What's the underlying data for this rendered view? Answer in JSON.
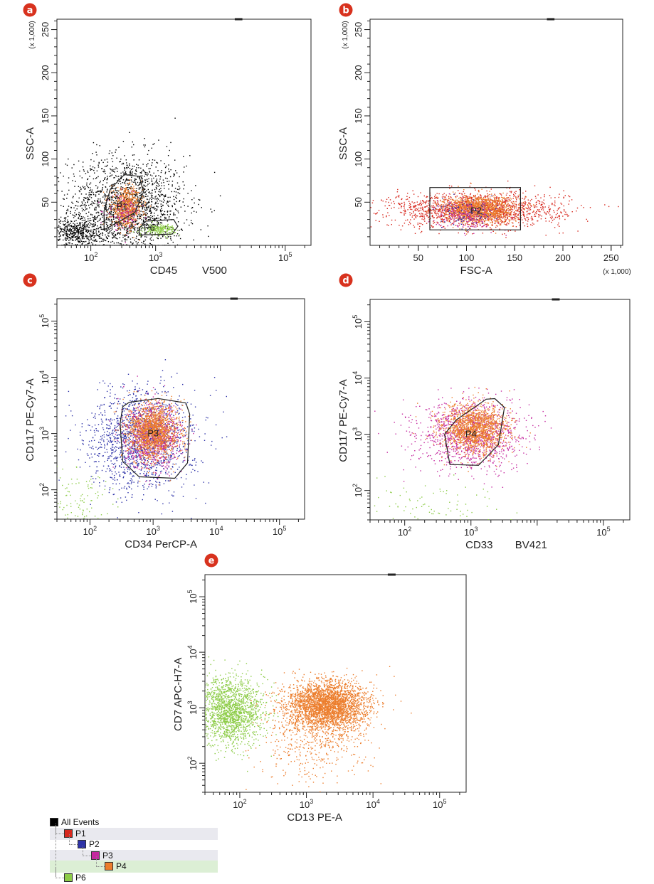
{
  "colors": {
    "P1": "#d7281e",
    "P2": "#2e33a8",
    "P3": "#c4289f",
    "P4": "#ec7d2c",
    "P6": "#8dcc48",
    "ungated": "#000000",
    "badge": "#d8321e"
  },
  "chart_data": [
    {
      "panel": "a",
      "type": "scatter",
      "xlabel": "CD45",
      "xlabel_suffix": "V500",
      "ylabel": "SSC-A",
      "y_multiplier": "(x 1,000)",
      "x_scale": "log",
      "y_scale": "linear",
      "xlim": [
        30,
        250000
      ],
      "ylim": [
        0,
        262
      ],
      "x_ticks": [
        {
          "value": 100,
          "base": "10",
          "exp": "2"
        },
        {
          "value": 1000,
          "base": "10",
          "exp": "3"
        },
        {
          "value": 100000,
          "base": "10",
          "exp": "5"
        }
      ],
      "y_ticks": [
        {
          "value": 50,
          "label": "50"
        },
        {
          "value": 100,
          "label": "100"
        },
        {
          "value": 150,
          "label": "150"
        },
        {
          "value": 200,
          "label": "200"
        },
        {
          "value": 250,
          "label": "250"
        }
      ],
      "populations": [
        {
          "gate": "ungated",
          "color_key": "ungated",
          "count": 1900,
          "x_log_center": 2.55,
          "x_log_sd": 0.45,
          "y_center": 45,
          "y_sd": 30
        },
        {
          "gate": "ungated",
          "color_key": "ungated",
          "count": 500,
          "x_log_center": 1.75,
          "x_log_sd": 0.25,
          "y_center": 15,
          "y_sd": 8
        },
        {
          "gate": "P4",
          "color_key": "P4",
          "count": 700,
          "x_log_center": 2.55,
          "x_log_sd": 0.12,
          "y_center": 44,
          "y_sd": 11
        },
        {
          "gate": "P3",
          "color_key": "P3",
          "count": 120,
          "x_log_center": 2.5,
          "x_log_sd": 0.13,
          "y_center": 38,
          "y_sd": 10
        },
        {
          "gate": "P6",
          "color_key": "P6",
          "count": 220,
          "x_log_center": 3.05,
          "x_log_sd": 0.12,
          "y_center": 19,
          "y_sd": 3
        }
      ],
      "gates": [
        {
          "name": "P1",
          "label_x": 300,
          "label_y": 45,
          "polygon": [
            [
              160,
              18
            ],
            [
              200,
              22
            ],
            [
              480,
              38
            ],
            [
              650,
              62
            ],
            [
              560,
              80
            ],
            [
              330,
              82
            ],
            [
              200,
              65
            ],
            [
              160,
              40
            ]
          ]
        },
        {
          "name": "P6",
          "label_x": 800,
          "label_y": 20,
          "polygon": [
            [
              560,
              12
            ],
            [
              1800,
              13
            ],
            [
              2200,
              22
            ],
            [
              1900,
              30
            ],
            [
              700,
              28
            ],
            [
              560,
              20
            ]
          ]
        }
      ]
    },
    {
      "panel": "b",
      "type": "scatter",
      "xlabel": "FSC-A",
      "ylabel": "SSC-A",
      "x_multiplier": "(x 1,000)",
      "y_multiplier": "(x 1,000)",
      "x_scale": "linear",
      "y_scale": "linear",
      "xlim": [
        0,
        262
      ],
      "ylim": [
        0,
        262
      ],
      "x_ticks": [
        {
          "value": 50,
          "label": "50"
        },
        {
          "value": 100,
          "label": "100"
        },
        {
          "value": 150,
          "label": "150"
        },
        {
          "value": 200,
          "label": "200"
        },
        {
          "value": 250,
          "label": "250"
        }
      ],
      "y_ticks": [
        {
          "value": 50,
          "label": "50"
        },
        {
          "value": 100,
          "label": "100"
        },
        {
          "value": 150,
          "label": "150"
        },
        {
          "value": 200,
          "label": "200"
        },
        {
          "value": 250,
          "label": "250"
        }
      ],
      "populations": [
        {
          "gate": "P1",
          "color_key": "P1",
          "count": 1600,
          "x_center": 110,
          "x_sd": 45,
          "y_center": 42,
          "y_sd": 10
        },
        {
          "gate": "P4",
          "color_key": "P4",
          "count": 1300,
          "x_center": 112,
          "x_sd": 18,
          "y_center": 42,
          "y_sd": 8
        },
        {
          "gate": "P3",
          "color_key": "P3",
          "count": 220,
          "x_center": 100,
          "x_sd": 15,
          "y_center": 35,
          "y_sd": 8
        },
        {
          "gate": "P2",
          "color_key": "P2",
          "count": 100,
          "x_center": 100,
          "x_sd": 16,
          "y_center": 36,
          "y_sd": 8
        }
      ],
      "gates": [
        {
          "name": "P2",
          "label_x": 110,
          "label_y": 40,
          "polygon": [
            [
              62,
              18
            ],
            [
              156,
              18
            ],
            [
              156,
              67
            ],
            [
              62,
              67
            ]
          ]
        }
      ]
    },
    {
      "panel": "c",
      "type": "scatter",
      "xlabel": "CD34 PerCP-A",
      "ylabel": "CD117 PE-Cy7-A",
      "x_scale": "log",
      "y_scale": "log",
      "xlim": [
        30,
        250000
      ],
      "ylim": [
        30,
        250000
      ],
      "x_ticks": [
        {
          "value": 100,
          "base": "10",
          "exp": "2"
        },
        {
          "value": 1000,
          "base": "10",
          "exp": "3"
        },
        {
          "value": 10000,
          "base": "10",
          "exp": "4"
        },
        {
          "value": 100000,
          "base": "10",
          "exp": "5"
        }
      ],
      "y_ticks": [
        {
          "value": 100,
          "base": "10",
          "exp": "2"
        },
        {
          "value": 1000,
          "base": "10",
          "exp": "3"
        },
        {
          "value": 10000,
          "base": "10",
          "exp": "4"
        },
        {
          "value": 100000,
          "base": "10",
          "exp": "5"
        }
      ],
      "populations": [
        {
          "gate": "P2",
          "color_key": "P2",
          "count": 1500,
          "x_log_center": 2.8,
          "x_log_sd": 0.42,
          "y_log_center": 2.9,
          "y_log_sd": 0.45
        },
        {
          "gate": "P3",
          "color_key": "P3",
          "count": 900,
          "x_log_center": 3.0,
          "x_log_sd": 0.22,
          "y_log_center": 2.95,
          "y_log_sd": 0.28
        },
        {
          "gate": "P4",
          "color_key": "P4",
          "count": 1500,
          "x_log_center": 3.0,
          "x_log_sd": 0.2,
          "y_log_center": 3.05,
          "y_log_sd": 0.24
        },
        {
          "gate": "P6",
          "color_key": "P6",
          "count": 120,
          "x_log_center": 1.8,
          "x_log_sd": 0.25,
          "y_log_center": 1.8,
          "y_log_sd": 0.3
        }
      ],
      "gates": [
        {
          "name": "P3",
          "label_x": 1000,
          "label_y": 1000,
          "polygon": [
            [
              420,
              3600
            ],
            [
              1200,
              4200
            ],
            [
              3300,
              3500
            ],
            [
              3800,
              2200
            ],
            [
              3500,
              300
            ],
            [
              2200,
              160
            ],
            [
              600,
              170
            ],
            [
              330,
              320
            ],
            [
              300,
              1500
            ],
            [
              330,
              3000
            ]
          ]
        }
      ]
    },
    {
      "panel": "d",
      "type": "scatter",
      "xlabel": "CD33",
      "xlabel_suffix": "BV421",
      "ylabel": "CD117 PE-Cy7-A",
      "x_scale": "log",
      "y_scale": "log",
      "xlim": [
        30,
        250000
      ],
      "ylim": [
        30,
        250000
      ],
      "x_ticks": [
        {
          "value": 100,
          "base": "10",
          "exp": "2"
        },
        {
          "value": 1000,
          "base": "10",
          "exp": "3"
        },
        {
          "value": 100000,
          "base": "10",
          "exp": "5"
        }
      ],
      "y_ticks": [
        {
          "value": 100,
          "base": "10",
          "exp": "2"
        },
        {
          "value": 1000,
          "base": "10",
          "exp": "3"
        },
        {
          "value": 10000,
          "base": "10",
          "exp": "4"
        },
        {
          "value": 100000,
          "base": "10",
          "exp": "5"
        }
      ],
      "populations": [
        {
          "gate": "P3",
          "color_key": "P3",
          "count": 1200,
          "x_log_center": 3.0,
          "x_log_sd": 0.4,
          "y_log_center": 3.0,
          "y_log_sd": 0.3
        },
        {
          "gate": "P4",
          "color_key": "P4",
          "count": 1500,
          "x_log_center": 3.05,
          "x_log_sd": 0.25,
          "y_log_center": 3.1,
          "y_log_sd": 0.22
        },
        {
          "gate": "P6",
          "color_key": "P6",
          "count": 90,
          "x_log_center": 2.4,
          "x_log_sd": 0.5,
          "y_log_center": 1.7,
          "y_log_sd": 0.25
        }
      ],
      "gates": [
        {
          "name": "P4",
          "label_x": 1000,
          "label_y": 1000,
          "polygon": [
            [
              400,
              1000
            ],
            [
              600,
              1800
            ],
            [
              1700,
              4200
            ],
            [
              2300,
              4300
            ],
            [
              3200,
              3000
            ],
            [
              2600,
              650
            ],
            [
              1300,
              280
            ],
            [
              480,
              290
            ]
          ]
        }
      ]
    },
    {
      "panel": "e",
      "type": "scatter",
      "xlabel": "CD13 PE-A",
      "ylabel": "CD7 APC-H7-A",
      "x_scale": "log",
      "y_scale": "log",
      "xlim": [
        30,
        250000
      ],
      "ylim": [
        30,
        250000
      ],
      "x_ticks": [
        {
          "value": 100,
          "base": "10",
          "exp": "2"
        },
        {
          "value": 1000,
          "base": "10",
          "exp": "3"
        },
        {
          "value": 10000,
          "base": "10",
          "exp": "4"
        },
        {
          "value": 100000,
          "base": "10",
          "exp": "5"
        }
      ],
      "y_ticks": [
        {
          "value": 100,
          "base": "10",
          "exp": "2"
        },
        {
          "value": 1000,
          "base": "10",
          "exp": "3"
        },
        {
          "value": 10000,
          "base": "10",
          "exp": "4"
        },
        {
          "value": 100000,
          "base": "10",
          "exp": "5"
        }
      ],
      "populations": [
        {
          "gate": "P6",
          "color_key": "P6",
          "count": 1700,
          "x_log_center": 1.85,
          "x_log_sd": 0.25,
          "y_log_center": 2.95,
          "y_log_sd": 0.3
        },
        {
          "gate": "P4",
          "color_key": "P4",
          "count": 3000,
          "x_log_center": 3.3,
          "x_log_sd": 0.3,
          "y_log_center": 3.05,
          "y_log_sd": 0.22
        },
        {
          "gate": "P4",
          "color_key": "P4",
          "count": 500,
          "x_log_center": 3.1,
          "x_log_sd": 0.4,
          "y_log_center": 2.4,
          "y_log_sd": 0.4
        }
      ],
      "gates": []
    }
  ],
  "hierarchy": [
    {
      "label": "All Events",
      "color_key": "ungated",
      "level": 0
    },
    {
      "label": "P1",
      "color_key": "P1",
      "level": 1
    },
    {
      "label": "P2",
      "color_key": "P2",
      "level": 2
    },
    {
      "label": "P3",
      "color_key": "P3",
      "level": 3
    },
    {
      "label": "P4",
      "color_key": "P4",
      "level": 4
    },
    {
      "label": "P6",
      "color_key": "P6",
      "level": 1
    }
  ]
}
